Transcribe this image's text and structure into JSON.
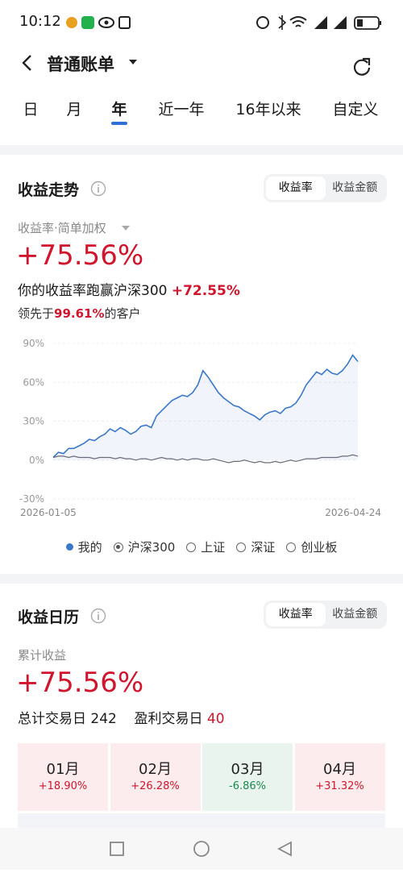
{
  "status_bar": {
    "time": "10:12"
  },
  "header": {
    "title": "普通账单"
  },
  "tabs": {
    "items": [
      "日",
      "月",
      "年",
      "近一年",
      "16年以来",
      "自定义"
    ],
    "active": 2
  },
  "trend_section": {
    "title": "收益走势",
    "toggle": [
      "收益率",
      "收益金额"
    ],
    "toggle_active": 0,
    "metric_label": "收益率·简单加权",
    "return_value": "+75.56%",
    "compare_text": "你的收益率跑赢沪深300",
    "compare_value": "+72.55%",
    "rank_prefix": "领先于",
    "rank_value": "99.61%",
    "rank_suffix": "的客户",
    "other_options": [
      "上证",
      "深证",
      "创业板"
    ]
  },
  "chart_data": {
    "type": "line",
    "categories": [
      "2026-01-05",
      null,
      null,
      null,
      null,
      null,
      null,
      null,
      null,
      null,
      null,
      null,
      null,
      null,
      null,
      null,
      null,
      null,
      null,
      null,
      null,
      null,
      null,
      null,
      null,
      null,
      null,
      null,
      null,
      null,
      null,
      null,
      null,
      null,
      null,
      null,
      null,
      null,
      null,
      null,
      null,
      null,
      null,
      null,
      null,
      null,
      null,
      null,
      null,
      null,
      null,
      null,
      null,
      null,
      null,
      null,
      null,
      null,
      null,
      "2026-04-24"
    ],
    "series": [
      {
        "name": "我的",
        "color": "#3a78c9",
        "values": [
          2,
          6,
          5,
          9,
          9,
          11,
          13,
          16,
          15,
          18,
          20,
          24,
          22,
          25,
          23,
          20,
          22,
          26,
          27,
          25,
          34,
          38,
          42,
          46,
          48,
          50,
          49,
          52,
          58,
          69,
          64,
          58,
          52,
          48,
          45,
          42,
          41,
          38,
          36,
          34,
          31,
          35,
          37,
          38,
          36,
          40,
          41,
          44,
          50,
          58,
          63,
          68,
          66,
          70,
          67,
          66,
          69,
          74,
          81,
          76
        ]
      },
      {
        "name": "沪深300",
        "color": "#6b6b78",
        "values": [
          2,
          3,
          3,
          2,
          3,
          2,
          2,
          2,
          1,
          2,
          2,
          2,
          1,
          2,
          1,
          1,
          0,
          1,
          1,
          0,
          1,
          2,
          1,
          1,
          0,
          1,
          0,
          1,
          1,
          0,
          0,
          1,
          0,
          -1,
          -2,
          -1,
          -1,
          0,
          -1,
          -2,
          -1,
          -2,
          -2,
          -1,
          -2,
          -1,
          0,
          -1,
          0,
          1,
          1,
          1,
          2,
          2,
          2,
          2,
          3,
          3,
          4,
          3
        ]
      }
    ],
    "ylim": [
      -30,
      90
    ],
    "yticks": [
      {
        "value": -30,
        "label": "-30%"
      },
      {
        "value": 0,
        "label": "0%"
      },
      {
        "value": 30,
        "label": "30%"
      },
      {
        "value": 60,
        "label": "60%"
      },
      {
        "value": 90,
        "label": "90%"
      }
    ],
    "grid": true
  },
  "calendar_section": {
    "title": "收益日历",
    "toggle": [
      "收益率",
      "收益金额"
    ],
    "toggle_active": 0,
    "cumulative_label": "累计收益",
    "cumulative_value": "+75.56%",
    "total_days_label": "总计交易日",
    "total_days": 242,
    "profit_days_label": "盈利交易日",
    "profit_days": 40,
    "months": [
      {
        "month": "01月",
        "return": "+18.90%"
      },
      {
        "month": "02月",
        "return": "+26.28%"
      },
      {
        "month": "03月",
        "return": "-6.86%"
      },
      {
        "month": "04月",
        "return": "+31.32%"
      }
    ]
  }
}
